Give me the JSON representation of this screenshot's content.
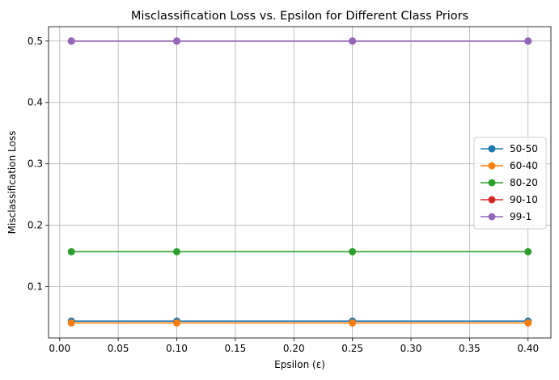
{
  "chart_data": {
    "type": "line",
    "title": "Misclassification Loss vs. Epsilon for Different Class Priors",
    "xlabel": "Epsilon (ε)",
    "ylabel": "Misclassification Loss",
    "x": [
      0.01,
      0.1,
      0.25,
      0.4
    ],
    "xlim": [
      -0.0095,
      0.4195
    ],
    "ylim": [
      0.0166,
      0.5234
    ],
    "xticks": [
      0.0,
      0.05,
      0.1,
      0.15,
      0.2,
      0.25,
      0.3,
      0.35,
      0.4
    ],
    "xtick_labels": [
      "0.00",
      "0.05",
      "0.10",
      "0.15",
      "0.20",
      "0.25",
      "0.30",
      "0.35",
      "0.40"
    ],
    "yticks": [
      0.1,
      0.2,
      0.3,
      0.4,
      0.5
    ],
    "ytick_labels": [
      "0.1",
      "0.2",
      "0.3",
      "0.4",
      "0.5"
    ],
    "grid": true,
    "legend_position": "center-right",
    "series": [
      {
        "name": "50-50",
        "color": "#1f77b4",
        "values": [
          0.044,
          0.044,
          0.044,
          0.044
        ]
      },
      {
        "name": "60-40",
        "color": "#ff7f0e",
        "values": [
          0.041,
          0.041,
          0.041,
          0.041
        ]
      },
      {
        "name": "80-20",
        "color": "#2ca02c",
        "values": [
          0.157,
          0.157,
          0.157,
          0.157
        ]
      },
      {
        "name": "90-10",
        "color": "#d62728",
        "values": [
          0.5,
          0.5,
          0.5,
          0.5
        ]
      },
      {
        "name": "99-1",
        "color": "#9467bd",
        "values": [
          0.5,
          0.5,
          0.5,
          0.5
        ]
      }
    ]
  }
}
